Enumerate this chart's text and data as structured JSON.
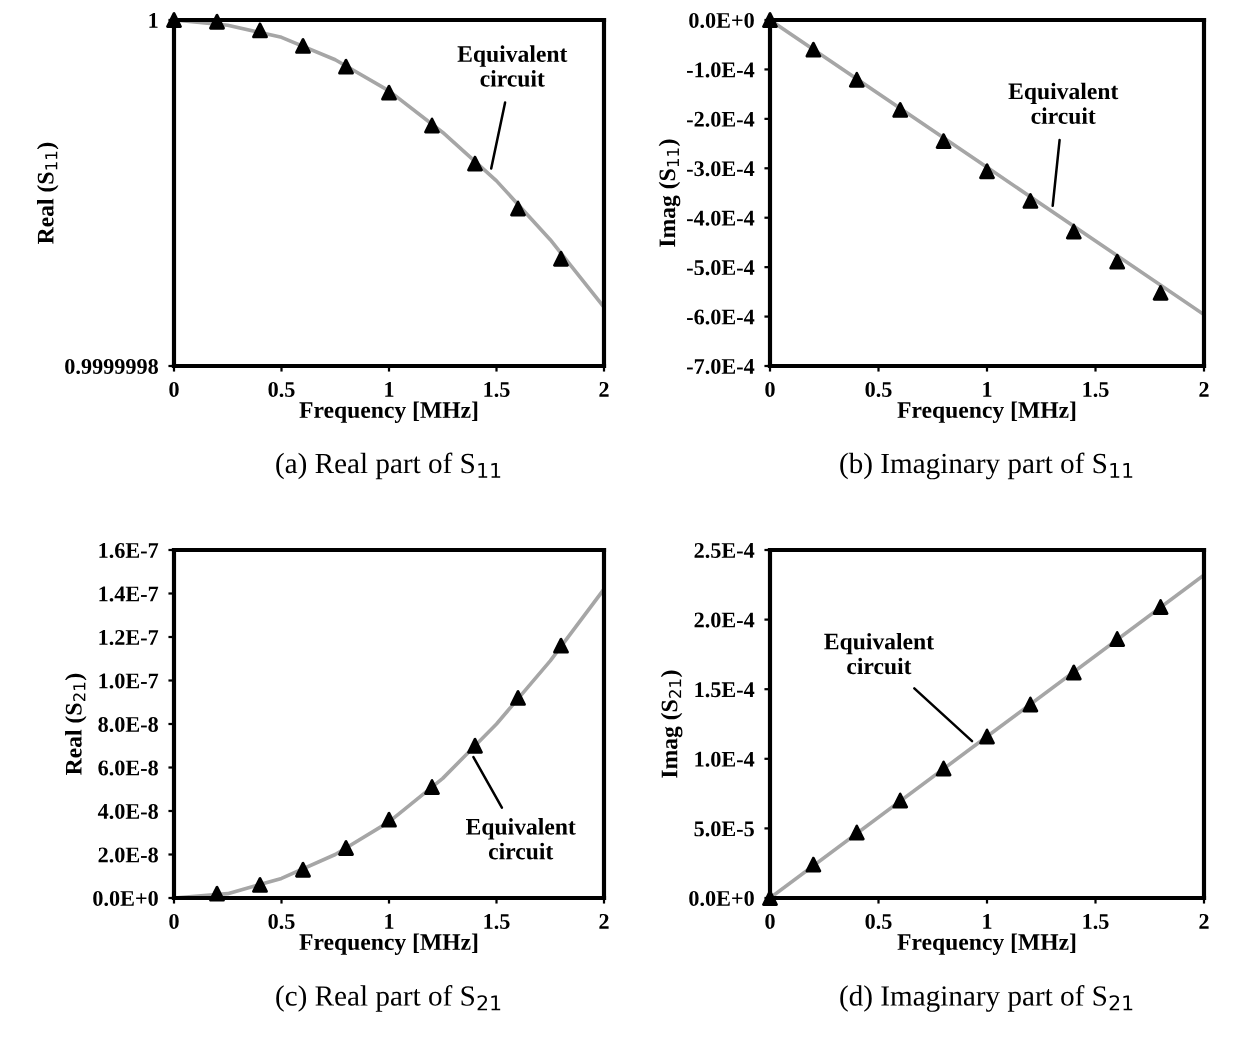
{
  "chart_data": [
    {
      "type": "line",
      "title": "(a) Real part of S$_{11}$",
      "xlabel": "Frequency [MHz]",
      "ylabel": "Real (S$_{11}$)",
      "xlim": [
        0,
        2
      ],
      "xticks": [
        0,
        0.5,
        1,
        1.5,
        2
      ],
      "ylim": [
        0.9999998,
        1
      ],
      "yticks": [
        0.9999998,
        1
      ],
      "grid": false,
      "legend": false,
      "series": [
        {
          "color": "#a6a6a6",
          "marker": "none",
          "x": [
            0,
            0.25,
            0.5,
            0.75,
            1,
            1.25,
            1.5,
            1.75,
            2
          ],
          "values": [
            1,
            0.999999997,
            0.99999999,
            0.999999977,
            0.999999959,
            0.999999935,
            0.999999907,
            0.999999873,
            0.999999834
          ]
        },
        {
          "type": "scatter",
          "color": "#000000",
          "marker": "triangle",
          "x": [
            0,
            0.2,
            0.4,
            0.6,
            0.8,
            1,
            1.2,
            1.4,
            1.6,
            1.8
          ],
          "values": [
            1,
            0.999999999,
            0.999999994,
            0.999999985,
            0.999999973,
            0.999999958,
            0.999999939,
            0.999999917,
            0.999999891,
            0.999999862
          ]
        }
      ],
      "annotations": [
        {
          "text": "Equivalent\ncircuit",
          "x": 1.47,
          "y": 0.999999911
        }
      ]
    },
    {
      "type": "line",
      "title": "(b) Imaginary part of S$_{11}$",
      "xlabel": "Frequency [MHz]",
      "ylabel": "Imag (S$_{11}$)",
      "xlim": [
        0,
        2
      ],
      "xticks": [
        0,
        0.5,
        1,
        1.5,
        2
      ],
      "ylim": [
        -0.0007,
        0
      ],
      "yticks": [
        {
          "value": 0,
          "label": "0.0E+0"
        },
        {
          "value": -0.0001,
          "label": "-1.0E-4"
        },
        {
          "value": -0.0002,
          "label": "-2.0E-4"
        },
        {
          "value": -0.0003,
          "label": "-3.0E-4"
        },
        {
          "value": -0.0004,
          "label": "-4.0E-4"
        },
        {
          "value": -0.0005,
          "label": "-5.0E-4"
        },
        {
          "value": -0.0006,
          "label": "-6.0E-4"
        },
        {
          "value": -0.0007,
          "label": "-7.0E-4"
        }
      ],
      "grid": false,
      "legend": false,
      "series": [
        {
          "color": "#a6a6a6",
          "marker": "none",
          "x": [
            0,
            1,
            2
          ],
          "values": [
            0,
            -0.000298,
            -0.000596
          ]
        },
        {
          "type": "scatter",
          "color": "#000000",
          "marker": "triangle",
          "x": [
            0,
            0.2,
            0.4,
            0.6,
            0.8,
            1,
            1.2,
            1.4,
            1.6,
            1.8
          ],
          "values": [
            0,
            -6e-05,
            -0.000121,
            -0.000182,
            -0.000245,
            -0.000306,
            -0.000366,
            -0.000428,
            -0.000489,
            -0.000552
          ]
        }
      ],
      "annotations": [
        {
          "text": "Equivalent\ncircuit",
          "x": 1.3,
          "y": -0.000387
        }
      ]
    },
    {
      "type": "line",
      "title": "(c) Real part of S$_{21}$",
      "xlabel": "Frequency [MHz]",
      "ylabel": "Real (S$_{21}$)",
      "xlim": [
        0,
        2
      ],
      "xticks": [
        0,
        0.5,
        1,
        1.5,
        2
      ],
      "ylim": [
        0,
        1.6e-07
      ],
      "yticks": [
        {
          "value": 0,
          "label": "0.0E+0"
        },
        {
          "value": 2e-08,
          "label": "2.0E-8"
        },
        {
          "value": 4e-08,
          "label": "4.0E-8"
        },
        {
          "value": 6e-08,
          "label": "6.0E-8"
        },
        {
          "value": 8e-08,
          "label": "8.0E-8"
        },
        {
          "value": 1e-07,
          "label": "1.0E-7"
        },
        {
          "value": 1.2e-07,
          "label": "1.2E-7"
        },
        {
          "value": 1.4e-07,
          "label": "1.4E-7"
        },
        {
          "value": 1.6e-07,
          "label": "1.6E-7"
        }
      ],
      "grid": false,
      "legend": false,
      "series": [
        {
          "color": "#a6a6a6",
          "marker": "none",
          "x": [
            0,
            0.25,
            0.5,
            0.75,
            1,
            1.25,
            1.5,
            1.75,
            2
          ],
          "values": [
            0,
            2e-09,
            9e-09,
            2e-08,
            3.5e-08,
            5.5e-08,
            8e-08,
            1.09e-07,
            1.42e-07
          ]
        },
        {
          "type": "scatter",
          "color": "#000000",
          "marker": "triangle",
          "x": [
            0.2,
            0.4,
            0.6,
            0.8,
            1,
            1.2,
            1.4,
            1.6,
            1.8
          ],
          "values": [
            2e-09,
            6e-09,
            1.3e-08,
            2.3e-08,
            3.6e-08,
            5.1e-08,
            7e-08,
            9.2e-08,
            1.16e-07
          ]
        }
      ],
      "annotations": [
        {
          "text": "Equivalent\ncircuit",
          "x": 1.38,
          "y": 6.7e-08
        }
      ]
    },
    {
      "type": "line",
      "title": "(d) Imaginary part of S$_{21}$",
      "xlabel": "Frequency [MHz]",
      "ylabel": "Imag (S$_{21}$)",
      "xlim": [
        0,
        2
      ],
      "xticks": [
        0,
        0.5,
        1,
        1.5,
        2
      ],
      "ylim": [
        0,
        0.00025
      ],
      "yticks": [
        {
          "value": 0,
          "label": "0.0E+0"
        },
        {
          "value": 5e-05,
          "label": "5.0E-5"
        },
        {
          "value": 0.0001,
          "label": "1.0E-4"
        },
        {
          "value": 0.00015,
          "label": "1.5E-4"
        },
        {
          "value": 0.0002,
          "label": "2.0E-4"
        },
        {
          "value": 0.00025,
          "label": "2.5E-4"
        }
      ],
      "grid": false,
      "legend": false,
      "series": [
        {
          "color": "#a6a6a6",
          "marker": "none",
          "x": [
            0,
            1,
            2
          ],
          "values": [
            0,
            0.000116,
            0.000232
          ]
        },
        {
          "type": "scatter",
          "color": "#000000",
          "marker": "triangle",
          "x": [
            0,
            0.2,
            0.4,
            0.6,
            0.8,
            1,
            1.2,
            1.4,
            1.6,
            1.8
          ],
          "values": [
            0,
            2.4e-05,
            4.7e-05,
            7e-05,
            9.3e-05,
            0.000116,
            0.000139,
            0.000162,
            0.000186,
            0.000209
          ]
        }
      ],
      "annotations": [
        {
          "text": "Equivalent\ncircuit",
          "x": 0.95,
          "y": 0.00011
        }
      ]
    }
  ]
}
